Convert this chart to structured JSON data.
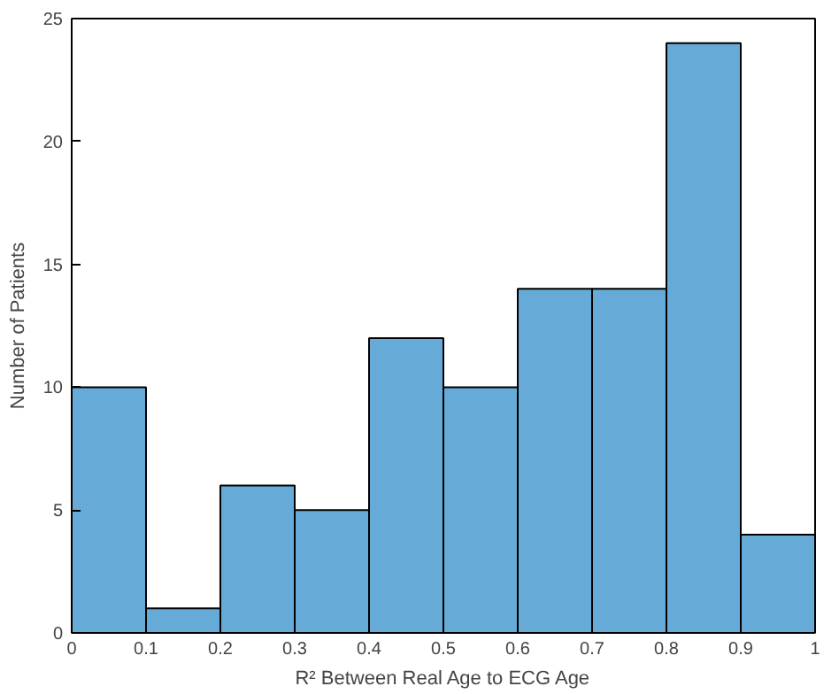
{
  "chart_data": {
    "type": "histogram",
    "xlabel": "R² Between Real Age to ECG Age",
    "ylabel": "Number of Patients",
    "bins": [
      0,
      0.1,
      0.2,
      0.3,
      0.4,
      0.5,
      0.6,
      0.7,
      0.8,
      0.9,
      1
    ],
    "values": [
      10,
      1,
      6,
      5,
      12,
      10,
      14,
      14,
      24,
      4
    ],
    "color": "#66aad7",
    "xlim": [
      0,
      1
    ],
    "xticks": [
      0,
      0.1,
      0.2,
      0.3,
      0.4,
      0.5,
      0.6,
      0.7,
      0.8,
      0.9,
      1
    ],
    "ylim": [
      0,
      25
    ],
    "yticks": [
      0,
      5,
      10,
      15,
      20,
      25
    ],
    "grid": false
  }
}
